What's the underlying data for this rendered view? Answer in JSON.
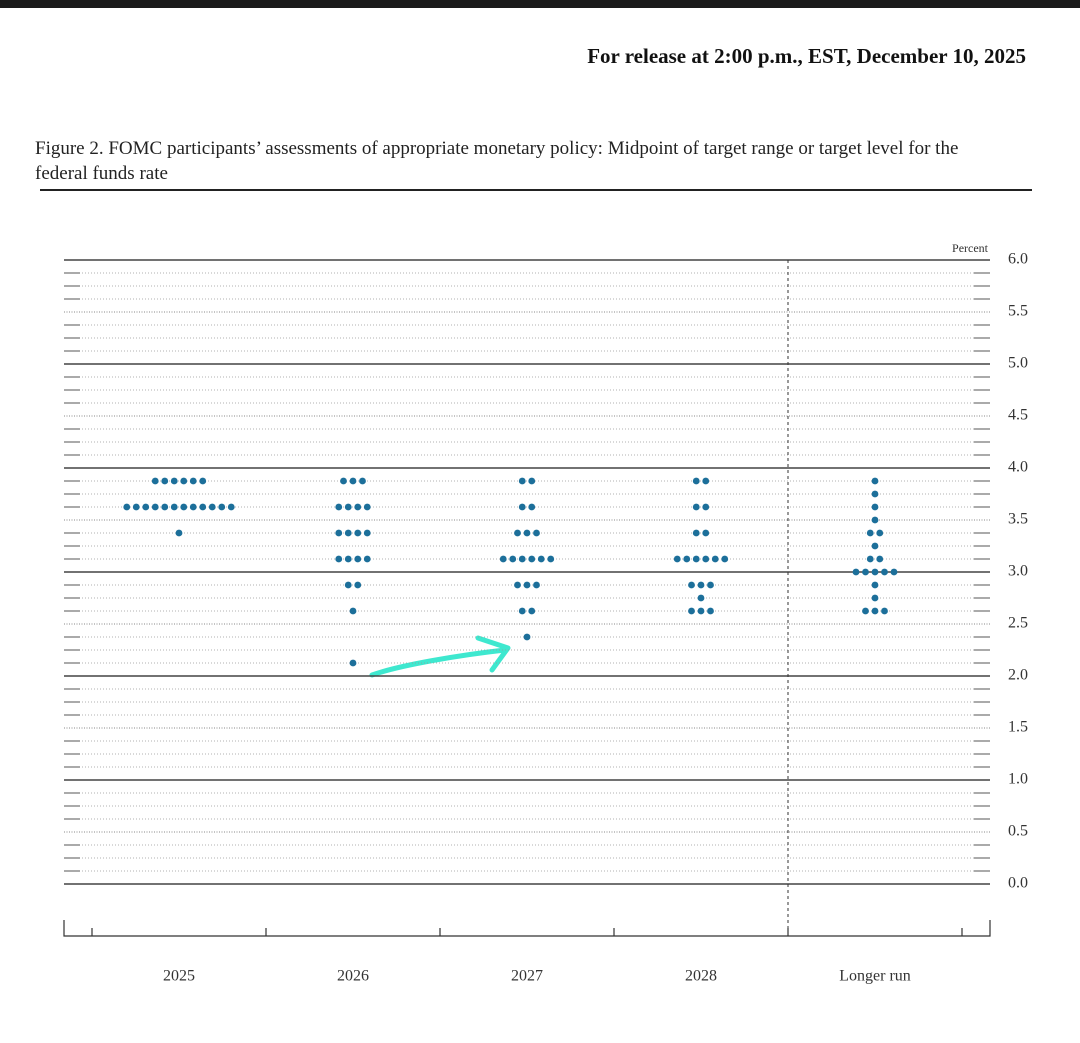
{
  "header": {
    "release": "For release at 2:00 p.m., EST, December 10, 2025"
  },
  "chart_data": {
    "type": "dot",
    "title": "Figure 2. FOMC participants’ assessments of appropriate monetary policy: Midpoint of target range or target level for the federal funds rate",
    "y_unit": "Percent",
    "categories": [
      "2025",
      "2026",
      "2027",
      "2028",
      "Longer run"
    ],
    "color": "#1c6f9a",
    "dots": [
      [
        {
          "value": 3.875,
          "count": 6
        },
        {
          "value": 3.625,
          "count": 12
        },
        {
          "value": 3.375,
          "count": 1
        }
      ],
      [
        {
          "value": 3.875,
          "count": 3
        },
        {
          "value": 3.625,
          "count": 4
        },
        {
          "value": 3.375,
          "count": 4
        },
        {
          "value": 3.125,
          "count": 4
        },
        {
          "value": 2.875,
          "count": 2
        },
        {
          "value": 2.625,
          "count": 1
        },
        {
          "value": 2.125,
          "count": 1
        }
      ],
      [
        {
          "value": 3.875,
          "count": 2
        },
        {
          "value": 3.625,
          "count": 2
        },
        {
          "value": 3.375,
          "count": 3
        },
        {
          "value": 3.125,
          "count": 6
        },
        {
          "value": 2.875,
          "count": 3
        },
        {
          "value": 2.625,
          "count": 2
        },
        {
          "value": 2.375,
          "count": 1
        }
      ],
      [
        {
          "value": 3.875,
          "count": 2
        },
        {
          "value": 3.625,
          "count": 2
        },
        {
          "value": 3.375,
          "count": 2
        },
        {
          "value": 3.125,
          "count": 6
        },
        {
          "value": 2.875,
          "count": 3
        },
        {
          "value": 2.75,
          "count": 1
        },
        {
          "value": 2.625,
          "count": 3
        }
      ],
      [
        {
          "value": 3.875,
          "count": 1
        },
        {
          "value": 3.75,
          "count": 1
        },
        {
          "value": 3.625,
          "count": 1
        },
        {
          "value": 3.5,
          "count": 1
        },
        {
          "value": 3.375,
          "count": 2
        },
        {
          "value": 3.25,
          "count": 1
        },
        {
          "value": 3.125,
          "count": 2
        },
        {
          "value": 3.0,
          "count": 5
        },
        {
          "value": 2.875,
          "count": 1
        },
        {
          "value": 2.75,
          "count": 1
        },
        {
          "value": 2.625,
          "count": 3
        }
      ]
    ],
    "ylim": [
      0,
      6
    ],
    "yticks": [
      {
        "value": 0,
        "label": "0.0"
      },
      0.5,
      {
        "value": 1,
        "label": "1.0"
      },
      1.5,
      {
        "value": 2,
        "label": "2.0"
      },
      2.5,
      {
        "value": 3,
        "label": "3.0"
      },
      3.5,
      {
        "value": 4,
        "label": "4.0"
      },
      4.5,
      {
        "value": 5,
        "label": "5.0"
      },
      5.5,
      {
        "value": 6,
        "label": "6.0"
      }
    ],
    "grid": true
  }
}
